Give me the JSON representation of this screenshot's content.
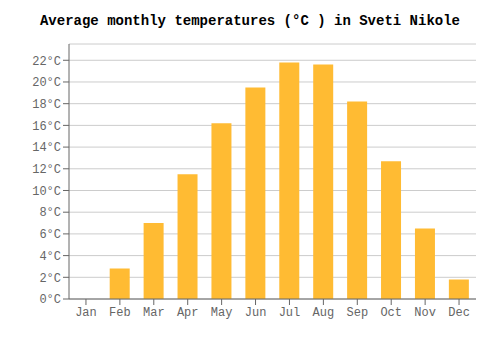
{
  "chart_data": {
    "type": "bar",
    "title": "Average monthly temperatures (°C ) in Sveti Nikole",
    "categories": [
      "Jan",
      "Feb",
      "Mar",
      "Apr",
      "May",
      "Jun",
      "Jul",
      "Aug",
      "Sep",
      "Oct",
      "Nov",
      "Dec"
    ],
    "values": [
      0.0,
      2.8,
      7.0,
      11.5,
      16.2,
      19.5,
      21.8,
      21.6,
      18.2,
      12.7,
      6.5,
      1.8
    ],
    "color": "#FFBB33",
    "ylim": [
      0,
      23.5
    ],
    "yticks": [
      {
        "value": 0,
        "label": "0°C"
      },
      {
        "value": 2,
        "label": "2°C"
      },
      {
        "value": 4,
        "label": "4°C"
      },
      {
        "value": 6,
        "label": "6°C"
      },
      {
        "value": 8,
        "label": "8°C"
      },
      {
        "value": 10,
        "label": "10°C"
      },
      {
        "value": 12,
        "label": "12°C"
      },
      {
        "value": 14,
        "label": "14°C"
      },
      {
        "value": 16,
        "label": "16°C"
      },
      {
        "value": 18,
        "label": "18°C"
      },
      {
        "value": 20,
        "label": "20°C"
      },
      {
        "value": 22,
        "label": "22°C"
      }
    ],
    "grid": true
  }
}
